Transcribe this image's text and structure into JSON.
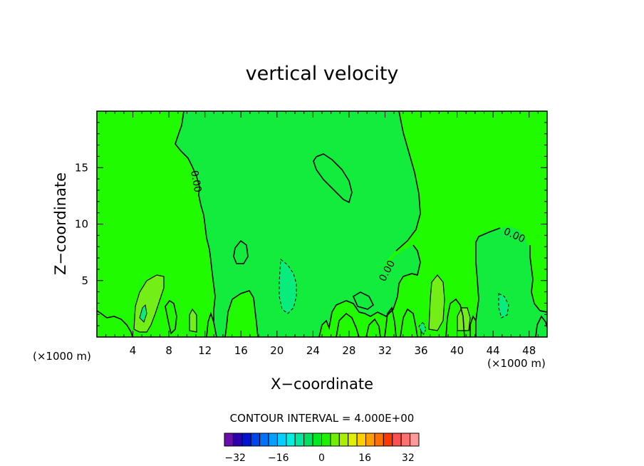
{
  "chart_data": {
    "type": "contour",
    "title": "vertical velocity",
    "xlabel": "X−coordinate",
    "ylabel": "Z−coordinate",
    "x_unit_label": "(×1000 m)",
    "xlim": [
      0,
      50
    ],
    "ylim": [
      0,
      20
    ],
    "x_ticks": [
      4,
      8,
      12,
      16,
      20,
      24,
      28,
      32,
      36,
      40,
      44,
      48
    ],
    "y_ticks": [
      5,
      10,
      15
    ],
    "contour_interval_text": "CONTOUR INTERVAL = 4.000E+00",
    "contour_labels": [
      "0.00",
      "0.00",
      "0.00"
    ],
    "colorbar": {
      "ticks": [
        "−32",
        "−16",
        "0",
        "16",
        "32"
      ],
      "tick_values": [
        -32,
        -16,
        0,
        16,
        32
      ],
      "boundaries": [
        -36,
        36
      ],
      "colors": [
        "#6a0dad",
        "#2b00aa",
        "#0014d0",
        "#0044ee",
        "#0070ff",
        "#00a0ff",
        "#00d0ff",
        "#00f0e0",
        "#00e8a0",
        "#00e060",
        "#00e820",
        "#20f000",
        "#70f000",
        "#a8f000",
        "#e0f000",
        "#ffd000",
        "#ffa000",
        "#ff7000",
        "#ff3800",
        "#ff5050",
        "#ff7070",
        "#ff9a9a"
      ]
    },
    "fills": {
      "background": "#21fb00",
      "central_region": "#12ec3c",
      "lowlevel_positive": "#73ef17",
      "downdraft_cores": "#07ec7c"
    }
  }
}
